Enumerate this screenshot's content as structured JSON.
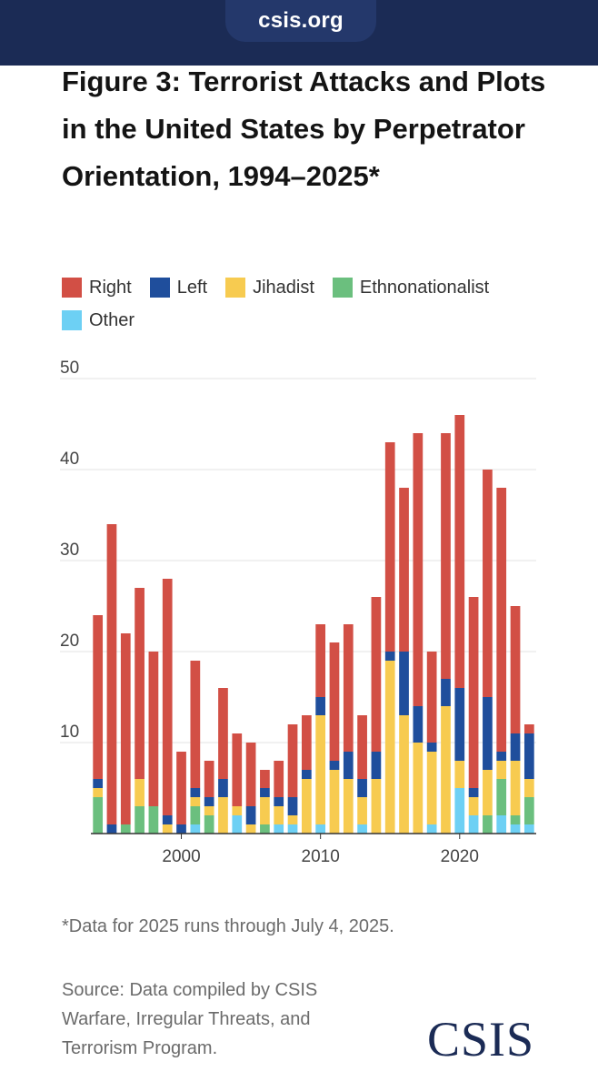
{
  "header": {
    "url": "csis.org"
  },
  "page": {
    "title": "Figure 3: Terrorist Attacks and Plots in the United States by Perpetrator Orientation, 1994–2025*",
    "note": "*Data for 2025 runs through July 4, 2025.",
    "source": "Source: Data compiled by CSIS Warfare, Irregular Threats, and Terrorism Program.",
    "logo": "CSIS"
  },
  "colors": {
    "right": "#d24f45",
    "left": "#1f4e9c",
    "jihadist": "#f7cb50",
    "ethnonationalist": "#6bbf7e",
    "other": "#6dd0f4",
    "header_bg": "#1b2b55"
  },
  "chart_data": {
    "type": "bar",
    "stacked": true,
    "title": "Figure 3: Terrorist Attacks and Plots in the United States by Perpetrator Orientation, 1994–2025*",
    "xlabel": "",
    "ylabel": "",
    "x": [
      1994,
      1995,
      1996,
      1997,
      1998,
      1999,
      2000,
      2001,
      2002,
      2003,
      2004,
      2005,
      2006,
      2007,
      2008,
      2009,
      2010,
      2011,
      2012,
      2013,
      2014,
      2015,
      2016,
      2017,
      2018,
      2019,
      2020,
      2021,
      2022,
      2023,
      2024,
      2025
    ],
    "x_ticks": [
      2000,
      2010,
      2020
    ],
    "y_ticks": [
      10,
      20,
      30,
      40,
      50
    ],
    "ylim": [
      0,
      50
    ],
    "grid": true,
    "legend_position": "top",
    "series": [
      {
        "name": "Other",
        "key": "other",
        "values": [
          0,
          0,
          0,
          0,
          0,
          0,
          0,
          1,
          0,
          0,
          2,
          0,
          0,
          1,
          1,
          0,
          1,
          0,
          0,
          1,
          0,
          0,
          0,
          0,
          1,
          0,
          5,
          2,
          0,
          2,
          1,
          1
        ]
      },
      {
        "name": "Ethnonationalist",
        "key": "ethnonationalist",
        "values": [
          4,
          0,
          1,
          3,
          3,
          0,
          0,
          2,
          2,
          0,
          0,
          0,
          1,
          0,
          0,
          0,
          0,
          0,
          0,
          0,
          0,
          0,
          0,
          0,
          0,
          0,
          0,
          0,
          2,
          4,
          1,
          3
        ]
      },
      {
        "name": "Jihadist",
        "key": "jihadist",
        "values": [
          1,
          0,
          0,
          3,
          0,
          1,
          0,
          1,
          1,
          4,
          1,
          1,
          3,
          2,
          1,
          6,
          12,
          7,
          6,
          3,
          6,
          19,
          13,
          10,
          8,
          14,
          3,
          2,
          5,
          2,
          6,
          2
        ]
      },
      {
        "name": "Left",
        "key": "left",
        "values": [
          1,
          1,
          0,
          0,
          0,
          1,
          1,
          1,
          1,
          2,
          0,
          2,
          1,
          1,
          2,
          1,
          2,
          1,
          3,
          2,
          3,
          1,
          7,
          4,
          1,
          3,
          8,
          1,
          8,
          1,
          3,
          5
        ]
      },
      {
        "name": "Right",
        "key": "right",
        "values": [
          18,
          33,
          21,
          21,
          17,
          26,
          8,
          14,
          4,
          10,
          8,
          7,
          2,
          4,
          8,
          6,
          8,
          13,
          14,
          7,
          17,
          23,
          18,
          30,
          10,
          27,
          30,
          21,
          25,
          29,
          14,
          1
        ]
      }
    ]
  }
}
